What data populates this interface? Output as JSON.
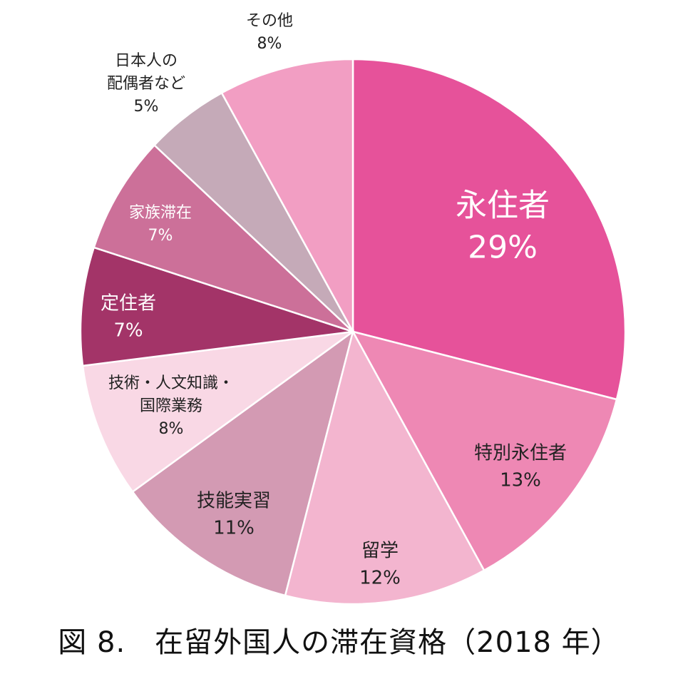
{
  "chart_data": {
    "type": "pie",
    "title": "図 8.　在留外国人の滞在資格（2018 年）",
    "start": "top",
    "direction": "clockwise",
    "slices": [
      {
        "label": "永住者",
        "value": 29,
        "value_label": "29%",
        "color": "#e6529a"
      },
      {
        "label": "特別永住者",
        "value": 13,
        "value_label": "13%",
        "color": "#ee88b4"
      },
      {
        "label": "留学",
        "value": 12,
        "value_label": "12%",
        "color": "#f3b5cf"
      },
      {
        "label": "技能実習",
        "value": 11,
        "value_label": "11%",
        "color": "#d39ab3"
      },
      {
        "label": "技術・人文知識・\n国際業務",
        "value": 8,
        "value_label": "8%",
        "color": "#f9d8e5"
      },
      {
        "label": "定住者",
        "value": 7,
        "value_label": "7%",
        "color": "#a33468"
      },
      {
        "label": "家族滞在",
        "value": 7,
        "value_label": "7%",
        "color": "#cc7099"
      },
      {
        "label": "日本人の\n配偶者など",
        "value": 5,
        "value_label": "5%",
        "color": "#c5aab8"
      },
      {
        "label": "その他",
        "value": 8,
        "value_label": "8%",
        "color": "#f29ec3"
      }
    ]
  }
}
